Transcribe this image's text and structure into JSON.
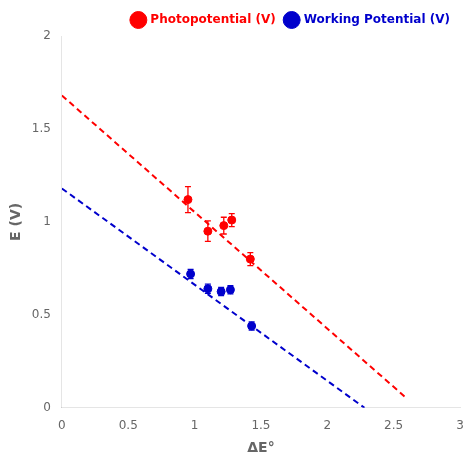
{
  "chart_data": {
    "type": "scatter",
    "xlabel": "ΔE°",
    "ylabel": "E (V)",
    "xlim": [
      0,
      3
    ],
    "ylim": [
      0,
      2
    ],
    "xticks": [
      0,
      0.5,
      1,
      1.5,
      2,
      2.5,
      3
    ],
    "yticks": [
      0,
      0.5,
      1,
      1.5,
      2
    ],
    "grid": false,
    "legend": "upper right",
    "series": [
      {
        "type": "line",
        "line_style": "dashed",
        "color": "#ff0000",
        "x": [
          0.0,
          2.6
        ],
        "values": [
          1.68,
          0.05
        ]
      },
      {
        "type": "line",
        "line_style": "dashed",
        "color": "#0000cc",
        "x": [
          0.0,
          2.28
        ],
        "values": [
          1.18,
          0.0
        ]
      },
      {
        "name": "Photopotential (V)",
        "type": "scatter",
        "marker": "circle",
        "color": "#ff0000",
        "x": [
          0.95,
          1.1,
          1.22,
          1.28,
          1.42
        ],
        "values": [
          1.12,
          0.95,
          0.98,
          1.01,
          0.8
        ],
        "yerr": [
          0.07,
          0.055,
          0.045,
          0.035,
          0.035
        ]
      },
      {
        "name": "Working Potential (V)",
        "type": "scatter",
        "marker": "circle",
        "color": "#0000cc",
        "x": [
          0.97,
          1.1,
          1.2,
          1.27,
          1.43
        ],
        "values": [
          0.72,
          0.64,
          0.625,
          0.635,
          0.44
        ],
        "yerr": [
          0.025,
          0.025,
          0.022,
          0.022,
          0.022
        ]
      }
    ]
  }
}
